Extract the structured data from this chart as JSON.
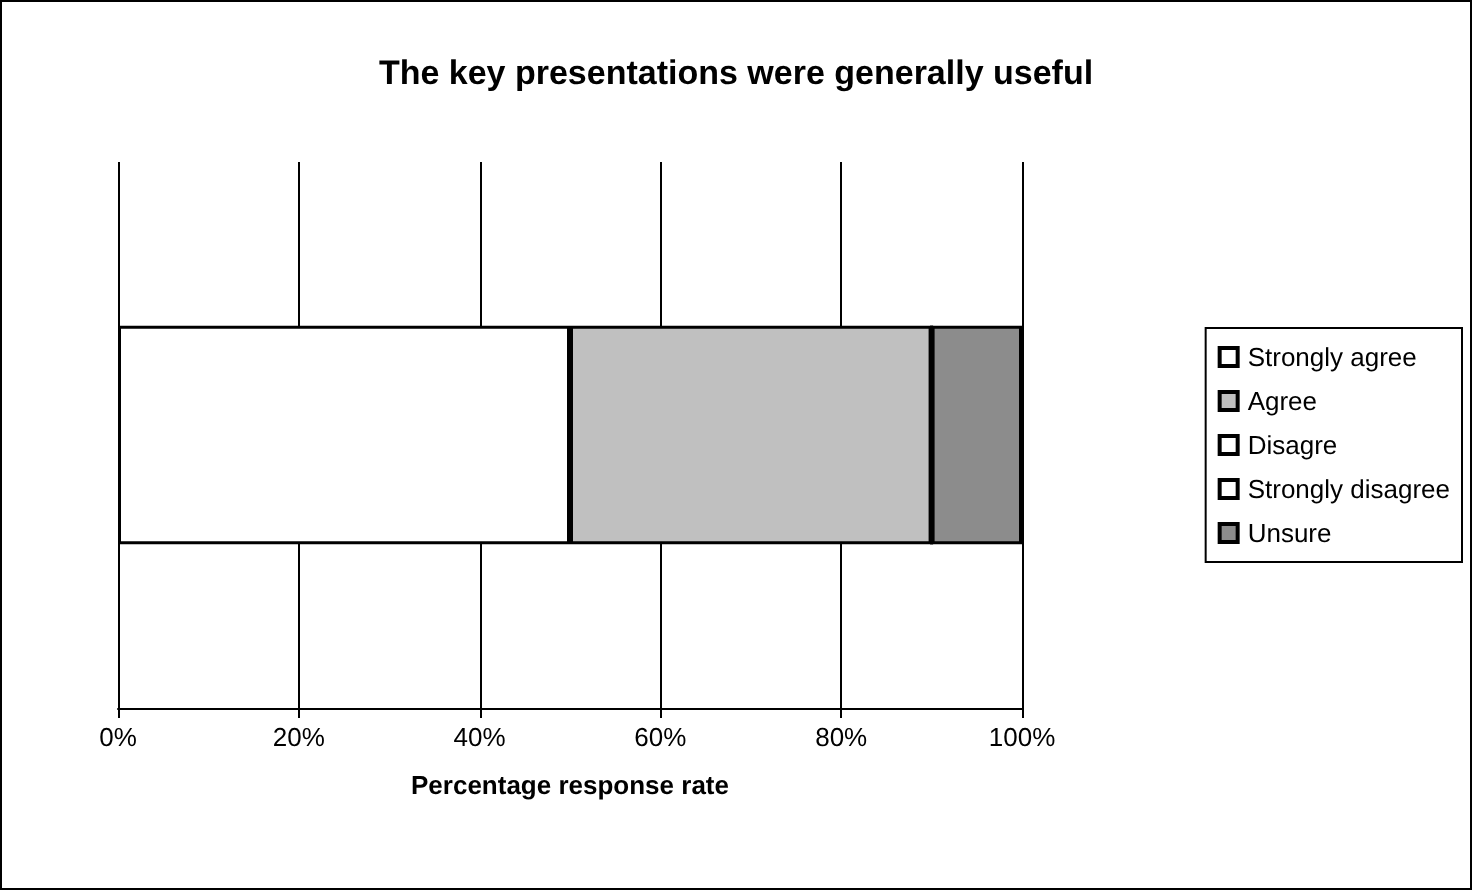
{
  "chart_data": {
    "type": "bar",
    "orientation": "horizontal",
    "stacked": true,
    "title": "The key presentations were generally useful",
    "xlabel": "Percentage response rate",
    "categories": [
      null
    ],
    "series": [
      {
        "name": "Strongly agree",
        "color": "#ffffff",
        "values": [
          50
        ]
      },
      {
        "name": "Agree",
        "color": "#c0c0c0",
        "values": [
          40
        ]
      },
      {
        "name": "Disagre",
        "color": "#ffffff",
        "values": [
          0
        ]
      },
      {
        "name": "Strongly disagree",
        "color": "#ffffff",
        "values": [
          0
        ]
      },
      {
        "name": "Unsure",
        "color": "#8c8c8c",
        "values": [
          10
        ]
      }
    ],
    "xlim": [
      0,
      100
    ],
    "xticks": [
      {
        "value": 0,
        "label": "0%"
      },
      {
        "value": 20,
        "label": "20%"
      },
      {
        "value": 40,
        "label": "40%"
      },
      {
        "value": 60,
        "label": "60%"
      },
      {
        "value": 80,
        "label": "80%"
      },
      {
        "value": 100,
        "label": "100%"
      }
    ],
    "grid": "x",
    "legend": "right"
  }
}
